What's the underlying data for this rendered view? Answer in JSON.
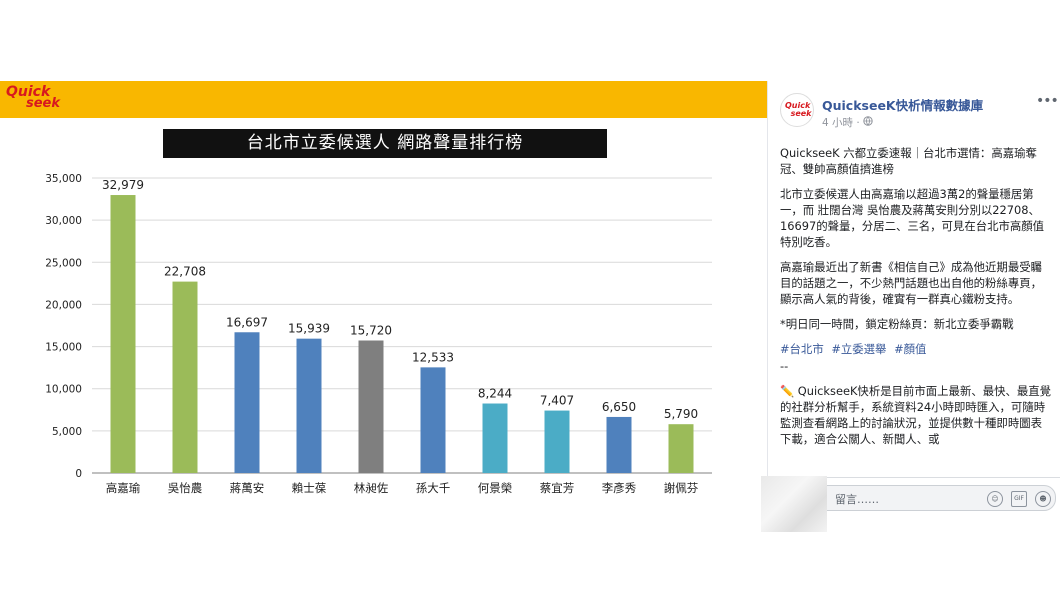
{
  "photo": {
    "logo": {
      "line1": "Quick",
      "line2": "seek"
    },
    "chart_title": "台北市立委候選人 網路聲量排行榜"
  },
  "chart_data": {
    "type": "bar",
    "title": "台北市立委候選人 網路聲量排行榜",
    "categories": [
      "高嘉瑜",
      "吳怡農",
      "蔣萬安",
      "賴士葆",
      "林昶佐",
      "孫大千",
      "何景榮",
      "蔡宜芳",
      "李彥秀",
      "謝佩芬"
    ],
    "values": [
      32979,
      22708,
      16697,
      15939,
      15720,
      12533,
      8244,
      7407,
      6650,
      5790
    ],
    "value_labels": [
      "32,979",
      "22,708",
      "16,697",
      "15,939",
      "15,720",
      "12,533",
      "8,244",
      "7,407",
      "6,650",
      "5,790"
    ],
    "colors": [
      "#9bbb59",
      "#9bbb59",
      "#4f81bd",
      "#4f81bd",
      "#7f7f7f",
      "#4f81bd",
      "#4bacc6",
      "#4bacc6",
      "#4f81bd",
      "#9bbb59"
    ],
    "ylim": [
      0,
      35000
    ],
    "yticks": [
      0,
      5000,
      10000,
      15000,
      20000,
      25000,
      30000,
      35000
    ],
    "ytick_labels": [
      "0",
      "5,000",
      "10,000",
      "15,000",
      "20,000",
      "25,000",
      "30,000",
      "35,000"
    ],
    "grid": true,
    "xlabel": "",
    "ylabel": ""
  },
  "post": {
    "page_name": "QuickseeK快析情報數據庫",
    "time": "4 小時",
    "paragraphs": [
      "QuickseeK 六都立委速報｜台北市選情：高嘉瑜奪冠、雙帥高顏值擠進榜",
      "北市立委候選人由高嘉瑜以超過3萬2的聲量穩居第一，而 壯闊台灣 吳怡農及蔣萬安則分別以22708、16697的聲量，分居二、三名，可見在台北市高顏值特別吃香。",
      "高嘉瑜最近出了新書《相信自己》成為他近期最受矚目的話題之一，不少熱門話題也出自他的粉絲專頁，顯示高人氣的背後，確實有一群真心鐵粉支持。",
      "*明日同一時間，鎖定粉絲頁：新北立委爭霸戰"
    ],
    "hashtags": [
      "#台北市",
      "#立委選舉",
      "#顏值"
    ],
    "separator": "--",
    "promo": "✏️ QuickseeK快析是目前市面上最新、最快、最直覺的社群分析幫手，系統資料24小時即時匯入，可隨時監測查看網路上的討論狀況，並提供數十種即時圖表下載，適合公關人、新聞人、或",
    "comment_placeholder": "留言……",
    "gif_label": "GIF"
  }
}
